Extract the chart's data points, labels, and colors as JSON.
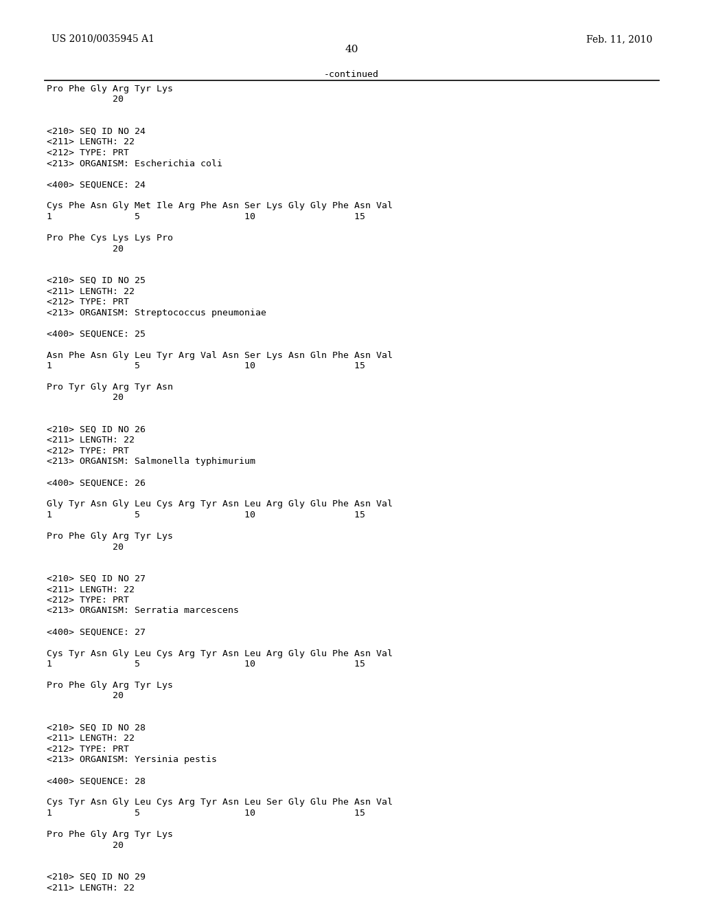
{
  "header_left": "US 2010/0035945 A1",
  "header_right": "Feb. 11, 2010",
  "page_number": "40",
  "continued_label": "-continued",
  "bg_color": "#ffffff",
  "text_color": "#000000",
  "font_size": 9.5,
  "lines": [
    "Pro Phe Gly Arg Tyr Lys",
    "            20",
    "",
    "",
    "<210> SEQ ID NO 24",
    "<211> LENGTH: 22",
    "<212> TYPE: PRT",
    "<213> ORGANISM: Escherichia coli",
    "",
    "<400> SEQUENCE: 24",
    "",
    "Cys Phe Asn Gly Met Ile Arg Phe Asn Ser Lys Gly Gly Phe Asn Val",
    "1               5                   10                  15",
    "",
    "Pro Phe Cys Lys Lys Pro",
    "            20",
    "",
    "",
    "<210> SEQ ID NO 25",
    "<211> LENGTH: 22",
    "<212> TYPE: PRT",
    "<213> ORGANISM: Streptococcus pneumoniae",
    "",
    "<400> SEQUENCE: 25",
    "",
    "Asn Phe Asn Gly Leu Tyr Arg Val Asn Ser Lys Asn Gln Phe Asn Val",
    "1               5                   10                  15",
    "",
    "Pro Tyr Gly Arg Tyr Asn",
    "            20",
    "",
    "",
    "<210> SEQ ID NO 26",
    "<211> LENGTH: 22",
    "<212> TYPE: PRT",
    "<213> ORGANISM: Salmonella typhimurium",
    "",
    "<400> SEQUENCE: 26",
    "",
    "Gly Tyr Asn Gly Leu Cys Arg Tyr Asn Leu Arg Gly Glu Phe Asn Val",
    "1               5                   10                  15",
    "",
    "Pro Phe Gly Arg Tyr Lys",
    "            20",
    "",
    "",
    "<210> SEQ ID NO 27",
    "<211> LENGTH: 22",
    "<212> TYPE: PRT",
    "<213> ORGANISM: Serratia marcescens",
    "",
    "<400> SEQUENCE: 27",
    "",
    "Cys Tyr Asn Gly Leu Cys Arg Tyr Asn Leu Arg Gly Glu Phe Asn Val",
    "1               5                   10                  15",
    "",
    "Pro Phe Gly Arg Tyr Lys",
    "            20",
    "",
    "",
    "<210> SEQ ID NO 28",
    "<211> LENGTH: 22",
    "<212> TYPE: PRT",
    "<213> ORGANISM: Yersinia pestis",
    "",
    "<400> SEQUENCE: 28",
    "",
    "Cys Tyr Asn Gly Leu Cys Arg Tyr Asn Leu Ser Gly Glu Phe Asn Val",
    "1               5                   10                  15",
    "",
    "Pro Phe Gly Arg Tyr Lys",
    "            20",
    "",
    "",
    "<210> SEQ ID NO 29",
    "<211> LENGTH: 22"
  ]
}
